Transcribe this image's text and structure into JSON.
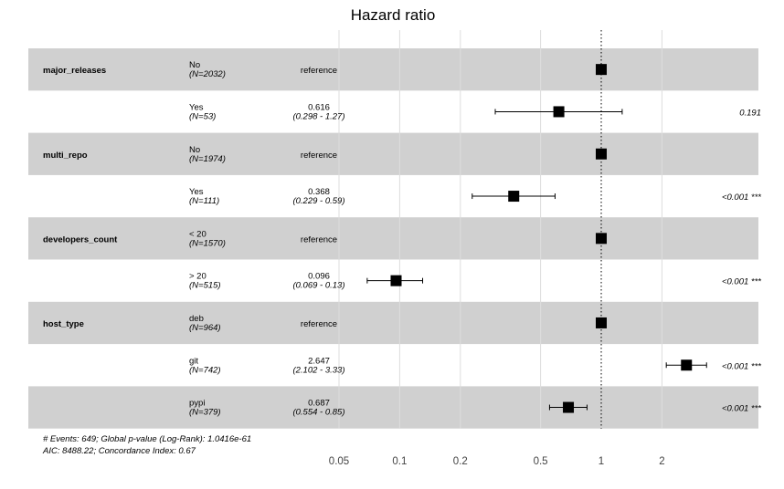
{
  "chart_data": {
    "type": "forest",
    "title": "Hazard ratio",
    "x_scale": "log",
    "xlim": [
      0.05,
      2
    ],
    "x_ticks": [
      {
        "value": 0.05,
        "label": "0.05"
      },
      {
        "value": 0.1,
        "label": "0.1"
      },
      {
        "value": 0.2,
        "label": "0.2"
      },
      {
        "value": 0.5,
        "label": "0.5"
      },
      {
        "value": 1,
        "label": "1"
      },
      {
        "value": 2,
        "label": "2"
      }
    ],
    "reference_line": 1,
    "grid": true,
    "rows": [
      {
        "variable": "major_releases",
        "level": "No",
        "n": "(N=2032)",
        "estimate_text": "reference",
        "ci_text": "",
        "hr": 1,
        "lo": null,
        "hi": null,
        "p": "",
        "shaded": true
      },
      {
        "variable": "",
        "level": "Yes",
        "n": "(N=53)",
        "estimate_text": "0.616",
        "ci_text": "(0.298 - 1.27)",
        "hr": 0.616,
        "lo": 0.298,
        "hi": 1.27,
        "p": "0.191",
        "shaded": false
      },
      {
        "variable": "multi_repo",
        "level": "No",
        "n": "(N=1974)",
        "estimate_text": "reference",
        "ci_text": "",
        "hr": 1,
        "lo": null,
        "hi": null,
        "p": "",
        "shaded": true
      },
      {
        "variable": "",
        "level": "Yes",
        "n": "(N=111)",
        "estimate_text": "0.368",
        "ci_text": "(0.229 - 0.59)",
        "hr": 0.368,
        "lo": 0.229,
        "hi": 0.59,
        "p": "<0.001 ***",
        "shaded": false
      },
      {
        "variable": "developers_count",
        "level": "< 20",
        "n": "(N=1570)",
        "estimate_text": "reference",
        "ci_text": "",
        "hr": 1,
        "lo": null,
        "hi": null,
        "p": "",
        "shaded": true
      },
      {
        "variable": "",
        "level": "> 20",
        "n": "(N=515)",
        "estimate_text": "0.096",
        "ci_text": "(0.069 - 0.13)",
        "hr": 0.096,
        "lo": 0.069,
        "hi": 0.13,
        "p": "<0.001 ***",
        "shaded": false
      },
      {
        "variable": "host_type",
        "level": "deb",
        "n": "(N=964)",
        "estimate_text": "reference",
        "ci_text": "",
        "hr": 1,
        "lo": null,
        "hi": null,
        "p": "",
        "shaded": true
      },
      {
        "variable": "",
        "level": "git",
        "n": "(N=742)",
        "estimate_text": "2.647",
        "ci_text": "(2.102 - 3.33)",
        "hr": 2.647,
        "lo": 2.102,
        "hi": 3.33,
        "p": "<0.001 ***",
        "shaded": false
      },
      {
        "variable": "",
        "level": "pypi",
        "n": "(N=379)",
        "estimate_text": "0.687",
        "ci_text": "(0.554 - 0.85)",
        "hr": 0.687,
        "lo": 0.554,
        "hi": 0.85,
        "p": "<0.001 ***",
        "shaded": true
      }
    ],
    "footer": [
      "# Events: 649; Global p-value (Log-Rank): 1.0416e-61",
      "AIC: 8488.22; Concordance Index: 0.67"
    ]
  }
}
